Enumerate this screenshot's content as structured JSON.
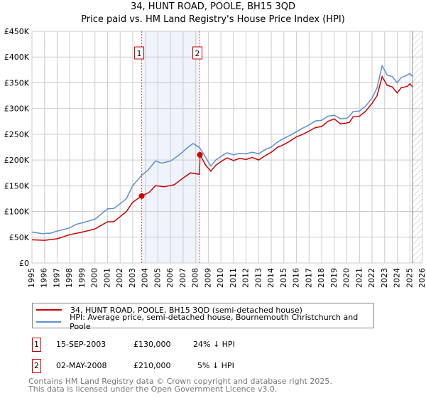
{
  "chart_data": {
    "type": "line",
    "title": "34, HUNT ROAD, POOLE, BH15 3QD",
    "subtitle": "Price paid vs. HM Land Registry's House Price Index (HPI)",
    "xlim": [
      1995,
      2026
    ],
    "ylim": [
      0,
      450000
    ],
    "x_ticks": [
      "1995",
      "1996",
      "1997",
      "1998",
      "1999",
      "2000",
      "2001",
      "2002",
      "2003",
      "2004",
      "2005",
      "2006",
      "2007",
      "2008",
      "2009",
      "2010",
      "2011",
      "2012",
      "2013",
      "2014",
      "2015",
      "2016",
      "2017",
      "2018",
      "2019",
      "2020",
      "2021",
      "2022",
      "2023",
      "2024",
      "2025",
      "2026"
    ],
    "y_ticks": [
      {
        "v": 0,
        "label": "£0"
      },
      {
        "v": 50000,
        "label": "£50K"
      },
      {
        "v": 100000,
        "label": "£100K"
      },
      {
        "v": 150000,
        "label": "£150K"
      },
      {
        "v": 200000,
        "label": "£200K"
      },
      {
        "v": 250000,
        "label": "£250K"
      },
      {
        "v": 300000,
        "label": "£300K"
      },
      {
        "v": 350000,
        "label": "£350K"
      },
      {
        "v": 400000,
        "label": "£400K"
      },
      {
        "v": 450000,
        "label": "£450K"
      }
    ],
    "grid": true,
    "series": [
      {
        "name": "34, HUNT ROAD, POOLE, BH15 3QD (semi-detached house)",
        "color": "#cc0000",
        "x": [
          1995,
          1996,
          1997,
          1998,
          1999,
          2000,
          2001,
          2001.5,
          2002,
          2002.5,
          2003,
          2003.7,
          2004.3,
          2004.8,
          2005.5,
          2006.3,
          2007,
          2007.6,
          2008.3,
          2008.34,
          2008.8,
          2009.2,
          2009.6,
          2010.2,
          2010.5,
          2011,
          2011.5,
          2012,
          2012.5,
          2013,
          2013.5,
          2014,
          2014.5,
          2015,
          2015.5,
          2016,
          2016.5,
          2017,
          2017.5,
          2018,
          2018.5,
          2019,
          2019.5,
          2020,
          2020.2,
          2020.5,
          2021,
          2021.5,
          2022,
          2022.4,
          2022.8,
          2023.2,
          2023.6,
          2024,
          2024.3,
          2024.8,
          2025,
          2025.2
        ],
        "y": [
          45,
          44,
          47,
          55,
          60,
          66,
          80,
          80,
          90,
          100,
          118,
          130,
          137,
          150,
          148,
          152,
          165,
          175,
          172,
          210,
          190,
          178,
          190,
          200,
          204,
          199,
          203,
          201,
          205,
          200,
          208,
          215,
          225,
          230,
          237,
          245,
          250,
          256,
          263,
          265,
          275,
          280,
          270,
          272,
          273,
          284,
          285,
          295,
          310,
          325,
          362,
          345,
          342,
          330,
          340,
          343,
          348,
          342
        ]
      },
      {
        "name": "HPI: Average price, semi-detached house, Bournemouth Christchurch and Poole",
        "color": "#5b8fd4",
        "x": [
          1995,
          1995.8,
          1996.5,
          1997,
          1998,
          1998.5,
          1999,
          2000,
          2000.5,
          2001,
          2001.5,
          2002,
          2002.5,
          2003,
          2003.7,
          2004.2,
          2004.8,
          2005.3,
          2006,
          2006.7,
          2007.4,
          2007.8,
          2008.3,
          2008.8,
          2009.2,
          2009.6,
          2010.2,
          2010.5,
          2011,
          2011.5,
          2012,
          2012.5,
          2013,
          2013.5,
          2014,
          2014.5,
          2015,
          2015.5,
          2016,
          2016.5,
          2017,
          2017.5,
          2018,
          2018.5,
          2019,
          2019.5,
          2020,
          2020.2,
          2020.5,
          2021,
          2021.5,
          2022,
          2022.4,
          2022.8,
          2023.2,
          2023.6,
          2024,
          2024.3,
          2024.8,
          2025,
          2025.2
        ],
        "y": [
          60,
          57,
          58,
          62,
          68,
          75,
          78,
          85,
          95,
          105,
          106,
          115,
          125,
          150,
          170,
          180,
          198,
          194,
          198,
          210,
          225,
          232,
          224,
          205,
          188,
          200,
          210,
          214,
          210,
          213,
          212,
          215,
          212,
          220,
          225,
          235,
          242,
          248,
          255,
          262,
          268,
          276,
          277,
          285,
          287,
          280,
          281,
          285,
          294,
          295,
          305,
          320,
          340,
          383,
          365,
          362,
          350,
          360,
          365,
          368,
          362
        ]
      }
    ],
    "y_units": "thousands GBP",
    "sales": [
      {
        "n": "1",
        "x": 2003.71,
        "y": 130
      },
      {
        "n": "2",
        "x": 2008.33,
        "y": 210
      }
    ],
    "shaded_range": [
      2003.71,
      2008.33
    ],
    "forecast_hatch_from": 2025.2,
    "legend_placement": "below"
  },
  "legend": {
    "property": "34, HUNT ROAD, POOLE, BH15 3QD (semi-detached house)",
    "hpi": "HPI: Average price, semi-detached house, Bournemouth Christchurch and Poole"
  },
  "transactions": [
    {
      "n": "1",
      "date": "15-SEP-2003",
      "price": "£130,000",
      "hpi": "24% ↓ HPI"
    },
    {
      "n": "2",
      "date": "02-MAY-2008",
      "price": "£210,000",
      "hpi": "5% ↓ HPI"
    }
  ],
  "footer": {
    "line1": "Contains HM Land Registry data © Crown copyright and database right 2025.",
    "line2": "This data is licensed under the Open Government Licence v3.0."
  }
}
